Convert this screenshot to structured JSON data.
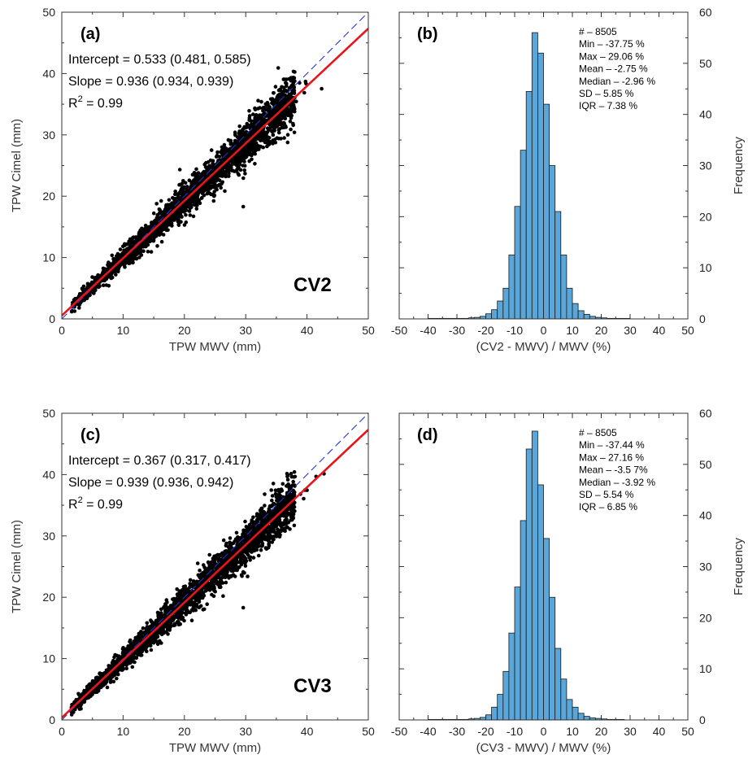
{
  "chart_data": [
    {
      "type": "scatter",
      "panel_label": "(a)",
      "tag": "CV2",
      "xlabel": "TPW MWV (mm)",
      "ylabel": "TPW Cimel (mm)",
      "xlim": [
        0,
        50
      ],
      "ylim": [
        0,
        50
      ],
      "xticks": [
        "0",
        "10",
        "20",
        "30",
        "40",
        "50"
      ],
      "yticks": [
        "0",
        "10",
        "20",
        "30",
        "40",
        "50"
      ],
      "stats": [
        "Intercept = 0.533 (0.481, 0.585)",
        "Slope = 0.936 (0.934, 0.939)"
      ],
      "r2": {
        "prefix": "R",
        "sup": "2",
        "rest": " = 0.99"
      },
      "fit": {
        "intercept": 0.533,
        "slope": 0.936,
        "color": "#e8141b"
      },
      "one_to_one_color": "#2233cc",
      "point_color": "#000000",
      "point_range": [
        1.5,
        43.2
      ]
    },
    {
      "type": "bar",
      "panel_label": "(b)",
      "xlabel": "(CV2 - MWV) / MWV (%)",
      "ylabel": "Frequency",
      "xlim": [
        -50,
        50
      ],
      "ylim": [
        0,
        60
      ],
      "xticks": [
        "-50",
        "-40",
        "-30",
        "-20",
        "-10",
        "0",
        "10",
        "20",
        "30",
        "40",
        "50"
      ],
      "yticks": [
        "0",
        "10",
        "20",
        "30",
        "40",
        "50",
        "60"
      ],
      "bin_width": 2,
      "bins": [
        -40,
        -38,
        -36,
        -34,
        -32,
        -30,
        -28,
        -26,
        -24,
        -22,
        -20,
        -18,
        -16,
        -14,
        -12,
        -10,
        -8,
        -6,
        -4,
        -2,
        0,
        2,
        4,
        6,
        8,
        10,
        12,
        14,
        16,
        18,
        20,
        22,
        24,
        26,
        28
      ],
      "values": [
        0.1,
        0.1,
        0.1,
        0.1,
        0.1,
        0.1,
        0.1,
        0.2,
        0.3,
        0.5,
        1,
        1.8,
        3.5,
        6,
        12.5,
        22,
        33,
        44.5,
        56,
        52,
        42,
        30,
        21,
        12.5,
        6,
        3,
        1.6,
        0.9,
        0.5,
        0.3,
        0.2,
        0.1,
        0.1,
        0.1,
        0.1
      ],
      "bar_color": "#5aa6d8",
      "stats": [
        "# – 8505",
        "Min – -37.75 %",
        "Max – 29.06  %",
        "Mean – -2.75 %",
        "Median – -2.96 %",
        "SD – 5.85 %",
        "IQR – 7.38 %"
      ]
    },
    {
      "type": "scatter",
      "panel_label": "(c)",
      "tag": "CV3",
      "xlabel": "TPW MWV (mm)",
      "ylabel": "TPW Cimel (mm)",
      "xlim": [
        0,
        50
      ],
      "ylim": [
        0,
        50
      ],
      "xticks": [
        "0",
        "10",
        "20",
        "30",
        "40",
        "50"
      ],
      "yticks": [
        "0",
        "10",
        "20",
        "30",
        "40",
        "50"
      ],
      "stats": [
        "Intercept = 0.367 (0.317, 0.417)",
        "Slope = 0.939 (0.936, 0.942)"
      ],
      "r2": {
        "prefix": "R",
        "sup": "2",
        "rest": " = 0.99"
      },
      "fit": {
        "intercept": 0.367,
        "slope": 0.939,
        "color": "#e8141b"
      },
      "one_to_one_color": "#2233cc",
      "point_color": "#000000",
      "point_range": [
        1.5,
        43.2
      ]
    },
    {
      "type": "bar",
      "panel_label": "(d)",
      "xlabel": "(CV3 - MWV) / MWV (%)",
      "ylabel": "Frequency",
      "xlim": [
        -50,
        50
      ],
      "ylim": [
        0,
        60
      ],
      "xticks": [
        "-50",
        "-40",
        "-30",
        "-20",
        "-10",
        "0",
        "10",
        "20",
        "30",
        "40",
        "50"
      ],
      "yticks": [
        "0",
        "10",
        "20",
        "30",
        "40",
        "50",
        "60"
      ],
      "bin_width": 2,
      "bins": [
        -40,
        -38,
        -36,
        -34,
        -32,
        -30,
        -28,
        -26,
        -24,
        -22,
        -20,
        -18,
        -16,
        -14,
        -12,
        -10,
        -8,
        -6,
        -4,
        -2,
        0,
        2,
        4,
        6,
        8,
        10,
        12,
        14,
        16,
        18,
        20,
        22,
        24,
        26
      ],
      "values": [
        0.1,
        0.1,
        0.1,
        0.1,
        0.1,
        0.1,
        0.1,
        0.2,
        0.3,
        0.5,
        1,
        2.5,
        5,
        9.5,
        17,
        26,
        39,
        53,
        56.5,
        46,
        35.5,
        24,
        14,
        8,
        4,
        2.5,
        1.3,
        0.7,
        0.4,
        0.3,
        0.2,
        0.1,
        0.1,
        0.1
      ],
      "bar_color": "#5aa6d8",
      "stats": [
        "# – 8505",
        "Min – -37.44 %",
        "Max – 27.16 %",
        "Mean – -3.5 7%",
        "Median – -3.92 %",
        "SD – 5.54 %",
        "IQR – 6.85 %"
      ]
    }
  ]
}
